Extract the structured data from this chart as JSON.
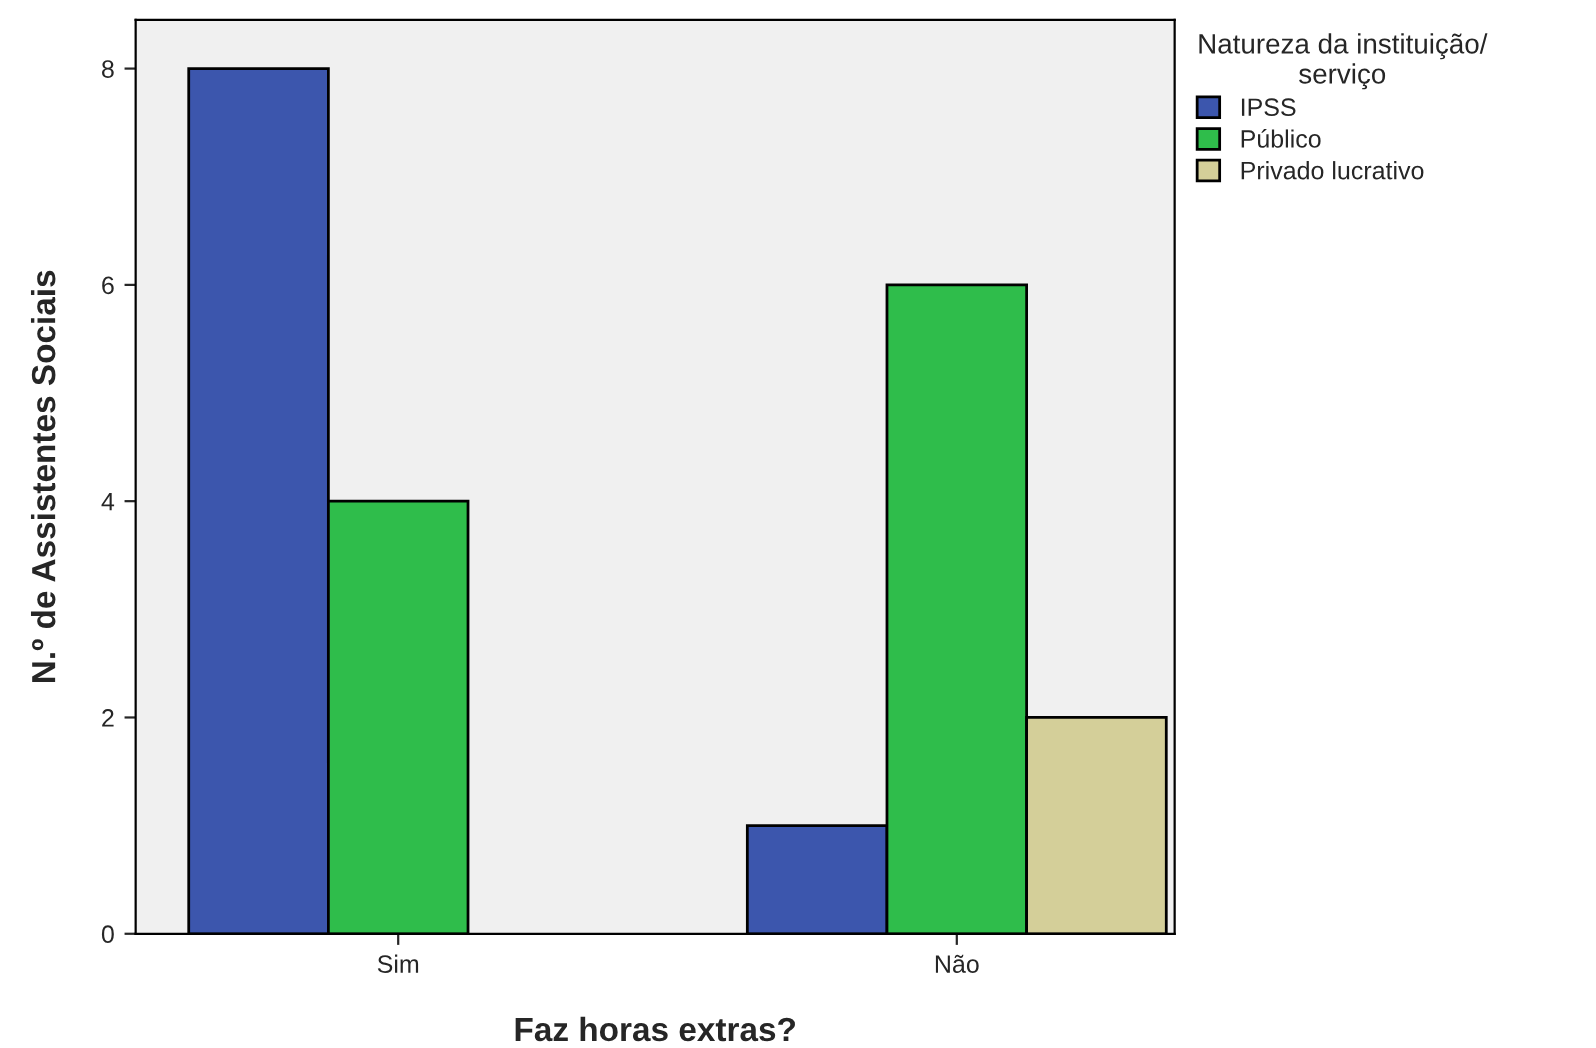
{
  "chart_data": {
    "type": "bar",
    "xlabel": "Faz horas extras?",
    "ylabel": "N.º de Assistentes Sociais",
    "legend_title": "Natureza da instituição/\nserviço",
    "categories": [
      "Sim",
      "Não"
    ],
    "series": [
      {
        "name": "IPSS",
        "color": "#3c56ad",
        "values": [
          8,
          1
        ]
      },
      {
        "name": "Público",
        "color": "#2fbd4b",
        "values": [
          4,
          6
        ]
      },
      {
        "name": "Privado lucrativo",
        "color": "#d4cf99",
        "values": [
          null,
          2
        ]
      }
    ],
    "ylim": [
      0,
      8.45
    ],
    "yticks": [
      0,
      2,
      4,
      6,
      8
    ],
    "grid": false,
    "legend": "top right"
  }
}
